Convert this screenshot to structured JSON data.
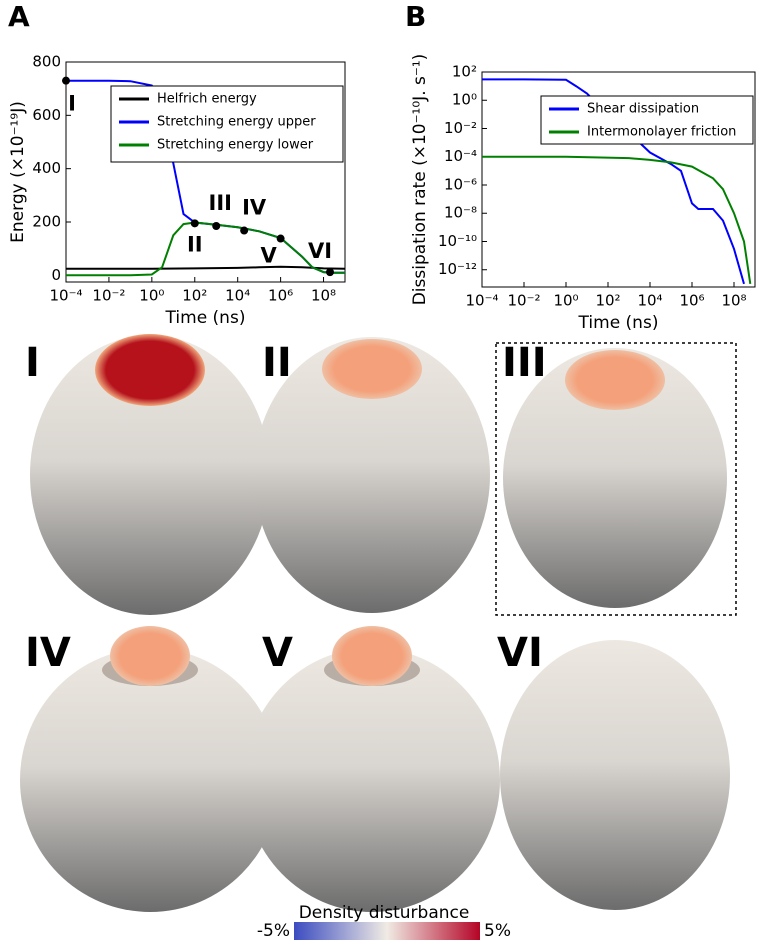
{
  "panel_letters": [
    "A",
    "B"
  ],
  "chart_data": [
    {
      "type": "line",
      "xlabel": "Time (ns)",
      "ylabel": "Energy (×10⁻¹⁹J)",
      "xscale": "log",
      "yscale": "linear",
      "xlim": [
        0.0001,
        1000000000
      ],
      "ylim": [
        -25,
        800
      ],
      "xticks": [
        {
          "value": 0.0001,
          "label": "10⁻⁴"
        },
        {
          "value": 0.01,
          "label": "10⁻²"
        },
        {
          "value": 1,
          "label": "10⁰"
        },
        {
          "value": 100,
          "label": "10²"
        },
        {
          "value": 10000,
          "label": "10⁴"
        },
        {
          "value": 1000000,
          "label": "10⁶"
        },
        {
          "value": 100000000,
          "label": "10⁸"
        }
      ],
      "yticks": [
        0,
        200,
        400,
        600,
        800
      ],
      "legend": "upper right",
      "series": [
        {
          "name": "Helfrich energy",
          "color": "#000000",
          "x": [
            0.0001,
            0.01,
            1,
            100,
            10000,
            100000,
            1000000,
            10000000,
            100000000,
            1000000000
          ],
          "values": [
            25,
            25,
            25,
            26,
            28,
            30,
            32,
            30,
            26,
            25
          ]
        },
        {
          "name": "Stretching energy upper",
          "color": "#0000ff",
          "x": [
            0.0001,
            0.001,
            0.01,
            0.1,
            1,
            3,
            10,
            30,
            100,
            1000,
            10000,
            100000,
            1000000,
            10000000,
            30000000,
            100000000,
            300000000,
            1000000000
          ],
          "values": [
            730,
            730,
            730,
            728,
            712,
            620,
            420,
            230,
            198,
            190,
            180,
            165,
            140,
            70,
            30,
            12,
            10,
            10
          ]
        },
        {
          "name": "Stretching energy lower",
          "color": "#008000",
          "x": [
            0.0001,
            0.01,
            0.1,
            1,
            3,
            10,
            30,
            100,
            1000,
            10000,
            100000,
            1000000,
            10000000,
            30000000,
            100000000,
            300000000,
            1000000000
          ],
          "values": [
            0,
            0,
            0,
            3,
            30,
            150,
            192,
            198,
            190,
            180,
            165,
            140,
            70,
            30,
            12,
            10,
            10
          ]
        }
      ],
      "annotations": [
        {
          "text": "I",
          "x": 0.0001,
          "y": 730
        },
        {
          "text": "II",
          "x": 100,
          "y": 195
        },
        {
          "text": "III",
          "x": 1000,
          "y": 185
        },
        {
          "text": "IV",
          "x": 20000,
          "y": 168
        },
        {
          "text": "V",
          "x": 1000000,
          "y": 138
        },
        {
          "text": "VI",
          "x": 200000000,
          "y": 12
        }
      ]
    },
    {
      "type": "line",
      "xlabel": "Time (ns)",
      "ylabel": "Dissipation rate (×10⁻¹⁰J. s⁻¹)",
      "xscale": "log",
      "yscale": "log",
      "xlim": [
        0.0001,
        1000000000
      ],
      "ylim": [
        6e-14,
        100
      ],
      "xticks": [
        {
          "value": 0.0001,
          "label": "10⁻⁴"
        },
        {
          "value": 0.01,
          "label": "10⁻²"
        },
        {
          "value": 1,
          "label": "10⁰"
        },
        {
          "value": 100,
          "label": "10²"
        },
        {
          "value": 10000,
          "label": "10⁴"
        },
        {
          "value": 1000000,
          "label": "10⁶"
        },
        {
          "value": 100000000,
          "label": "10⁸"
        }
      ],
      "yticks": [
        {
          "value": 100,
          "label": "10²"
        },
        {
          "value": 1,
          "label": "10⁰"
        },
        {
          "value": 0.01,
          "label": "10⁻²"
        },
        {
          "value": 0.0001,
          "label": "10⁻⁴"
        },
        {
          "value": 1e-06,
          "label": "10⁻⁶"
        },
        {
          "value": 1e-08,
          "label": "10⁻⁸"
        },
        {
          "value": 1e-10,
          "label": "10⁻¹⁰"
        },
        {
          "value": 1e-12,
          "label": "10⁻¹²"
        }
      ],
      "legend": "upper right",
      "series": [
        {
          "name": "Shear dissipation",
          "color": "#0000ff",
          "x": [
            0.0001,
            0.01,
            1,
            3,
            10,
            100,
            1000,
            10000,
            100000,
            300000,
            1000000,
            2000000,
            10000000,
            30000000,
            100000000,
            300000000
          ],
          "values": [
            30,
            30,
            28,
            10,
            3,
            0.1,
            0.005,
            0.0002,
            3e-05,
            1e-05,
            5e-08,
            2e-08,
            2e-08,
            3e-09,
            3e-11,
            1e-13
          ]
        },
        {
          "name": "Intermonolayer friction",
          "color": "#008000",
          "x": [
            0.0001,
            1,
            1000,
            10000,
            100000,
            1000000,
            10000000,
            30000000,
            100000000,
            300000000,
            600000000
          ],
          "values": [
            0.0001,
            0.0001,
            8e-05,
            6e-05,
            4e-05,
            2e-05,
            3e-06,
            5e-07,
            1e-08,
            1e-10,
            1e-13
          ]
        }
      ]
    }
  ],
  "vesicles": [
    {
      "label": "I"
    },
    {
      "label": "II"
    },
    {
      "label": "III"
    },
    {
      "label": "IV"
    },
    {
      "label": "V"
    },
    {
      "label": "VI"
    }
  ],
  "colorbar": {
    "title": "Density disturbance",
    "min_label": "-5%",
    "max_label": "5%"
  }
}
